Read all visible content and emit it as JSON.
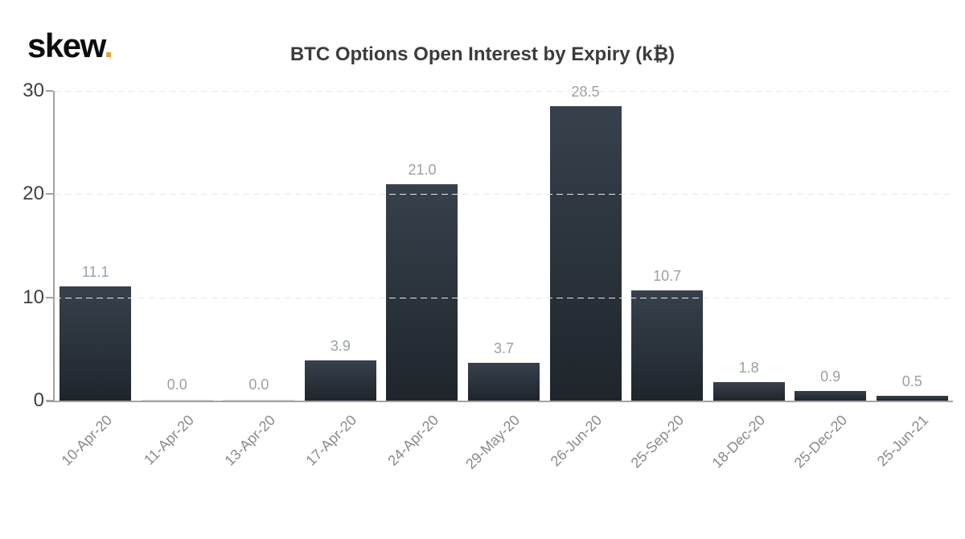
{
  "logo": {
    "text": "skew",
    "dot": "."
  },
  "title": "BTC Options Open Interest by Expiry (k₿)",
  "colors": {
    "bar_gradient_top": "#37414c",
    "bar_gradient_bottom": "#1f252b",
    "zero_bar": "#d4d4d4",
    "axis": "#a3a3a3",
    "grid": "#e7e7e7",
    "y_label": "#3f3f3f",
    "x_label": "#8a8a8a",
    "value_label": "#9aa0a4",
    "title_text": "#3c3c3c",
    "logo_text": "#0d0d0d",
    "logo_dot": "#e0a33e",
    "background": "#ffffff"
  },
  "y_axis": {
    "ticks": [
      0,
      10,
      20,
      30
    ],
    "max": 30
  },
  "chart_data": {
    "type": "bar",
    "title": "BTC Options Open Interest by Expiry (k₿)",
    "categories": [
      "10-Apr-20",
      "11-Apr-20",
      "13-Apr-20",
      "17-Apr-20",
      "24-Apr-20",
      "29-May-20",
      "26-Jun-20",
      "25-Sep-20",
      "18-Dec-20",
      "25-Dec-20",
      "25-Jun-21"
    ],
    "values": [
      11.1,
      0.0,
      0.0,
      3.9,
      21.0,
      3.7,
      28.5,
      10.7,
      1.8,
      0.9,
      0.5
    ],
    "value_labels": [
      "11.1",
      "0.0",
      "0.0",
      "3.9",
      "21.0",
      "3.7",
      "28.5",
      "10.7",
      "1.8",
      "0.9",
      "0.5"
    ],
    "xlabel": "",
    "ylabel": "",
    "ylim": [
      0,
      30
    ],
    "y_ticks": [
      0,
      10,
      20,
      30
    ],
    "grid": "horizontal-dashed",
    "legend": "none",
    "bar_label_position": "above",
    "x_tick_rotation": -45
  }
}
